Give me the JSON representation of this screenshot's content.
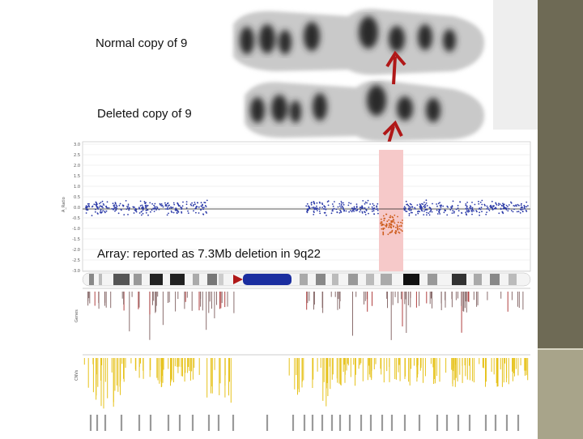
{
  "labels": {
    "normal": "Normal copy of 9",
    "deleted": "Deleted copy of 9",
    "array": "Array: reported as 7.3Mb deletion in 9q22"
  },
  "colors": {
    "probe_normal": "#2b3aa8",
    "probe_deleted": "#cc5a18",
    "deletion_band": "#f6c9c9",
    "arrow": "#b01818",
    "gene_track": "#8a6d6d",
    "cnv_track": "#e6c21a",
    "centromere": "#1b2ea0",
    "sidebar": "#6e6a55"
  },
  "y_axis_ticks": [
    "3.0",
    "2.5",
    "2.0",
    "1.5",
    "1.0",
    "0.5",
    "0.0",
    "-0.5",
    "-1.0",
    "-1.5",
    "-2.0",
    "-2.5",
    "-3.0"
  ]
}
